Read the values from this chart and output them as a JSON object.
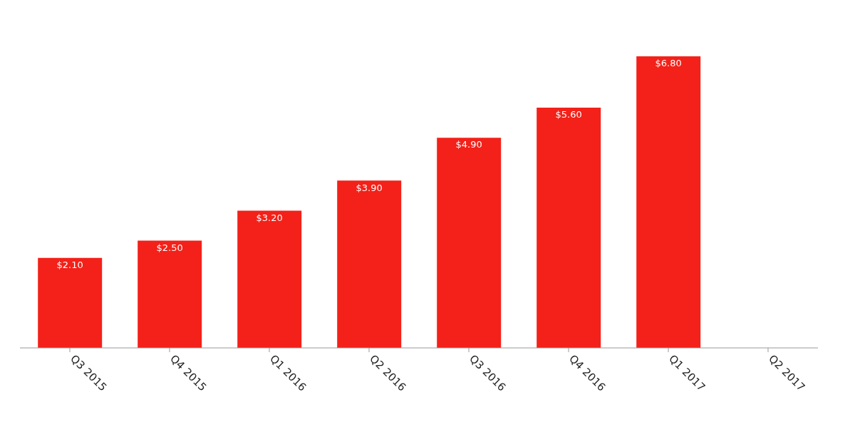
{
  "chart_data": {
    "type": "bar",
    "categories": [
      "Q3 2015",
      "Q4 2015",
      "Q1 2016",
      "Q2 2016",
      "Q3 2016",
      "Q4 2016",
      "Q1 2017",
      "Q2 2017"
    ],
    "values": [
      2.1,
      2.5,
      3.2,
      3.9,
      4.9,
      5.6,
      6.8,
      null
    ],
    "value_labels": [
      "$2.10",
      "$2.50",
      "$3.20",
      "$3.90",
      "$4.90",
      "$5.60",
      "$6.80",
      null
    ],
    "color": "#f32119"
  }
}
